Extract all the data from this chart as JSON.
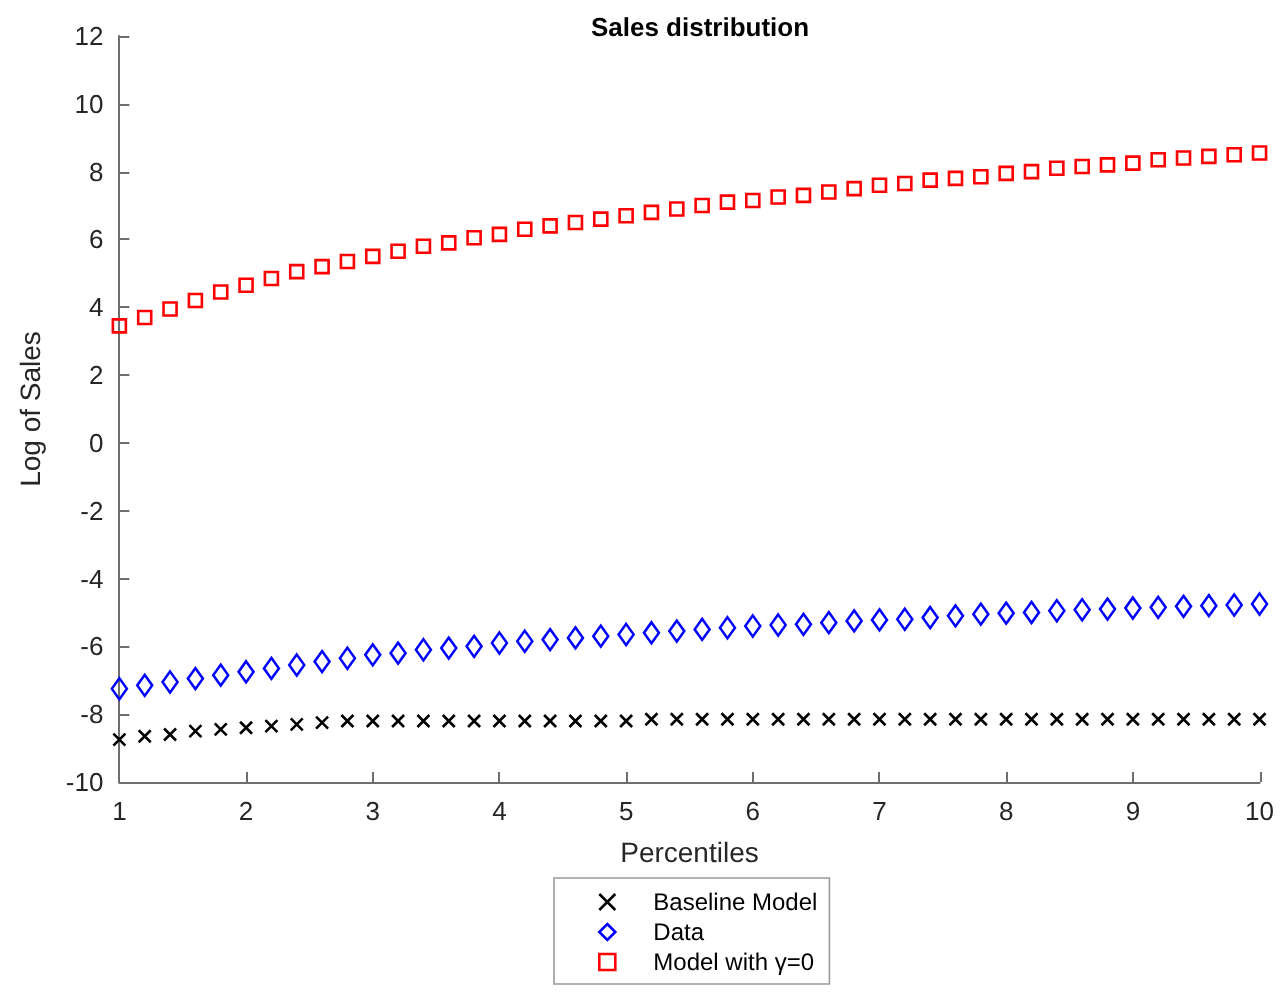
{
  "chart_data": {
    "type": "scatter",
    "title": "Sales distribution",
    "xlabel": "Percentiles",
    "ylabel": "Log of Sales",
    "x": [
      1,
      1.2,
      1.4,
      1.6,
      1.8,
      2,
      2.2,
      2.4,
      2.6,
      2.8,
      3,
      3.2,
      3.4,
      3.6,
      3.8,
      4,
      4.2,
      4.4,
      4.6,
      4.8,
      5,
      5.2,
      5.4,
      5.6,
      5.8,
      6,
      6.2,
      6.4,
      6.6,
      6.8,
      7,
      7.2,
      7.4,
      7.6,
      7.8,
      8,
      8.2,
      8.4,
      8.6,
      8.8,
      9,
      9.2,
      9.4,
      9.6,
      9.8,
      10
    ],
    "series": [
      {
        "name": "Baseline Model",
        "color": "#000000",
        "marker": "cross",
        "values": [
          -8.75,
          -8.65,
          -8.6,
          -8.5,
          -8.45,
          -8.4,
          -8.35,
          -8.3,
          -8.25,
          -8.2,
          -8.2,
          -8.2,
          -8.2,
          -8.2,
          -8.2,
          -8.2,
          -8.2,
          -8.2,
          -8.2,
          -8.2,
          -8.2,
          -8.15,
          -8.15,
          -8.15,
          -8.15,
          -8.15,
          -8.15,
          -8.15,
          -8.15,
          -8.15,
          -8.15,
          -8.15,
          -8.15,
          -8.15,
          -8.15,
          -8.15,
          -8.15,
          -8.15,
          -8.15,
          -8.15,
          -8.15,
          -8.15,
          -8.15,
          -8.15,
          -8.15,
          -8.15
        ]
      },
      {
        "name": "Data",
        "color": "#0000ff",
        "marker": "diamond",
        "values": [
          -7.25,
          -7.15,
          -7.05,
          -6.95,
          -6.85,
          -6.75,
          -6.65,
          -6.55,
          -6.45,
          -6.35,
          -6.25,
          -6.2,
          -6.1,
          -6.05,
          -6,
          -5.9,
          -5.85,
          -5.8,
          -5.75,
          -5.7,
          -5.65,
          -5.6,
          -5.55,
          -5.5,
          -5.45,
          -5.4,
          -5.37,
          -5.35,
          -5.3,
          -5.25,
          -5.22,
          -5.2,
          -5.15,
          -5.1,
          -5.05,
          -5.02,
          -5,
          -4.95,
          -4.92,
          -4.9,
          -4.87,
          -4.85,
          -4.82,
          -4.8,
          -4.78,
          -4.75
        ]
      },
      {
        "name": "Model with γ=0",
        "color": "#ff0000",
        "marker": "square",
        "values": [
          3.45,
          3.7,
          3.95,
          4.2,
          4.45,
          4.65,
          4.85,
          5.05,
          5.2,
          5.35,
          5.5,
          5.65,
          5.8,
          5.9,
          6.05,
          6.15,
          6.3,
          6.4,
          6.5,
          6.6,
          6.7,
          6.8,
          6.9,
          7,
          7.1,
          7.15,
          7.25,
          7.3,
          7.4,
          7.5,
          7.6,
          7.65,
          7.75,
          7.8,
          7.85,
          7.95,
          8,
          8.1,
          8.15,
          8.2,
          8.25,
          8.35,
          8.4,
          8.45,
          8.5,
          8.55
        ]
      }
    ],
    "xlim": [
      1,
      10
    ],
    "xticks": [
      1,
      2,
      3,
      4,
      5,
      6,
      7,
      8,
      9,
      10
    ],
    "ylim": [
      -10,
      12
    ],
    "yticks": [
      -10,
      -8,
      -6,
      -4,
      -2,
      0,
      2,
      4,
      6,
      8,
      10,
      12
    ],
    "grid": false,
    "legend": "bottom"
  }
}
